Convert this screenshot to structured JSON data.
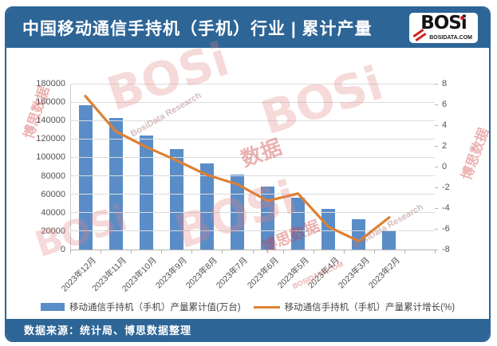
{
  "header": {
    "title": "中国移动通信手持机（手机）行业 | 累计产量",
    "logo": {
      "name": "BOSi",
      "domain": "BOSIDATA.COM"
    }
  },
  "chart_data": {
    "type": "bar",
    "title": "中国移动通信手持机（手机）行业 | 累计产量",
    "categories": [
      "2023年12月",
      "2023年11月",
      "2023年10月",
      "2023年9月",
      "2023年8月",
      "2023年7月",
      "2023年6月",
      "2023年5月",
      "2023年4月",
      "2023年3月",
      "2023年2月"
    ],
    "series": [
      {
        "name": "移动通信手持机（手机）产量累计值(万台)",
        "type": "bar",
        "axis": "left",
        "color": "#5a8dc8",
        "values": [
          156500,
          142500,
          124000,
          109000,
          93500,
          81500,
          68000,
          56000,
          44000,
          33000,
          20500
        ]
      },
      {
        "name": "移动通信手持机（手机）产量累计增长(%)",
        "type": "line",
        "axis": "right",
        "color": "#dd8033",
        "values": [
          6.8,
          3.4,
          1.9,
          0.6,
          -0.8,
          -1.7,
          -3.3,
          -2.6,
          -5.8,
          -7.2,
          -4.9
        ]
      }
    ],
    "left_axis": {
      "min": 0,
      "max": 180000,
      "step": 20000
    },
    "right_axis": {
      "min": -8,
      "max": 8,
      "step": 2
    },
    "x_slots": 12,
    "grid": true,
    "legend_position": "bottom"
  },
  "footer": {
    "source": "数据来源：统计局、博思数据整理"
  },
  "watermark": {
    "items": [
      {
        "text": "BOSi"
      },
      {
        "text": "BOSi"
      },
      {
        "text": "BOSi"
      },
      {
        "text": "BOSi"
      },
      {
        "text": "博思数据"
      },
      {
        "text": "数据"
      },
      {
        "text": "博思数据"
      },
      {
        "text": "BosiData Research"
      },
      {
        "text": "BosiData Research"
      },
      {
        "text": "BOSIDATA.COM"
      },
      {
        "text": "博思数据"
      }
    ]
  },
  "colors": {
    "banner": "#2d6596",
    "bar": "#5a8dc8",
    "line": "#dd8033",
    "axis_text": "#515151",
    "gridline": "#dcdcdc",
    "logo_red": "#cc2222"
  }
}
